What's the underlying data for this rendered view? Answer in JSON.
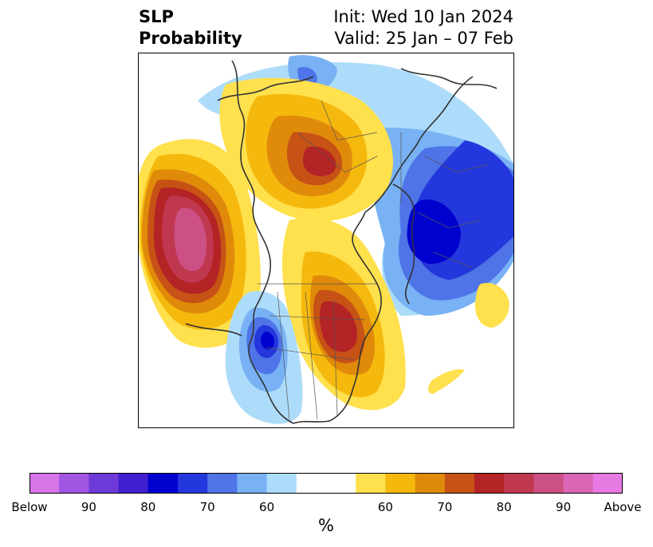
{
  "title": {
    "left_line1": "SLP",
    "left_line2": "Probability",
    "right_line1": "Init: Wed 10 Jan 2024",
    "right_line2": "Valid: 25 Jan – 07 Feb"
  },
  "colorbar": {
    "colors": [
      "#d775e8",
      "#a055e3",
      "#6e3ad8",
      "#3f1fcf",
      "#0000cf",
      "#2437dc",
      "#4f74e8",
      "#78b2f4",
      "#addcfa",
      "#ffffff",
      "#ffe04d",
      "#f5b90e",
      "#e08a0a",
      "#c65216",
      "#b42325",
      "#c03850",
      "#cc5083",
      "#db66b5",
      "#e679e2"
    ],
    "labels": [
      "Below",
      "90",
      "80",
      "70",
      "60",
      "60",
      "70",
      "80",
      "90",
      "Above"
    ],
    "unit": "%"
  },
  "map": {
    "projection": "north-polar-stereographic",
    "regions": [
      {
        "name": "north-pacific-above",
        "category": "above",
        "peak_percent": "90"
      },
      {
        "name": "eastern-canada-above",
        "category": "above",
        "peak_percent": "80"
      },
      {
        "name": "siberia-above",
        "category": "above",
        "peak_percent": "80"
      },
      {
        "name": "europe-below",
        "category": "below",
        "peak_percent": "80"
      },
      {
        "name": "western-us-below",
        "category": "below",
        "peak_percent": "80"
      }
    ]
  }
}
